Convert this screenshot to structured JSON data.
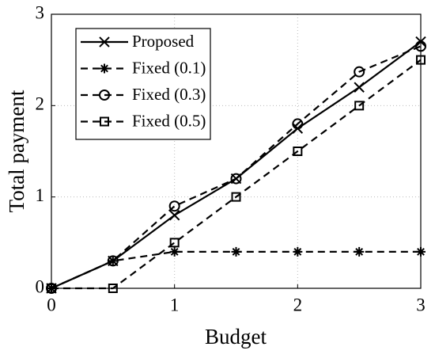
{
  "chart_data": {
    "type": "line",
    "xlabel": "Budget",
    "ylabel": "Total payment",
    "x": [
      0,
      0.5,
      1,
      1.5,
      2,
      2.5,
      3
    ],
    "series": [
      {
        "name": "Proposed",
        "color": "#000000",
        "linestyle": "solid",
        "marker": "x",
        "values": [
          0,
          0.3,
          0.8,
          1.2,
          1.75,
          2.2,
          2.7
        ]
      },
      {
        "name": "Fixed (0.1)",
        "color": "#000000",
        "linestyle": "dashed",
        "marker": "asterisk",
        "values": [
          0,
          0.3,
          0.4,
          0.4,
          0.4,
          0.4,
          0.4
        ]
      },
      {
        "name": "Fixed (0.3)",
        "color": "#000000",
        "linestyle": "dashed",
        "marker": "circle",
        "values": [
          0,
          0.3,
          0.9,
          1.2,
          1.8,
          2.37,
          2.65
        ]
      },
      {
        "name": "Fixed (0.5)",
        "color": "#000000",
        "linestyle": "dashed",
        "marker": "square",
        "values": [
          0,
          0,
          0.5,
          1.0,
          1.5,
          2.0,
          2.5
        ]
      }
    ],
    "xlim": [
      0,
      3
    ],
    "ylim": [
      0,
      3
    ],
    "xticks": [
      0,
      1,
      2,
      3
    ],
    "yticks": [
      0,
      1,
      2,
      3
    ],
    "grid": true,
    "legend": "upper left"
  }
}
